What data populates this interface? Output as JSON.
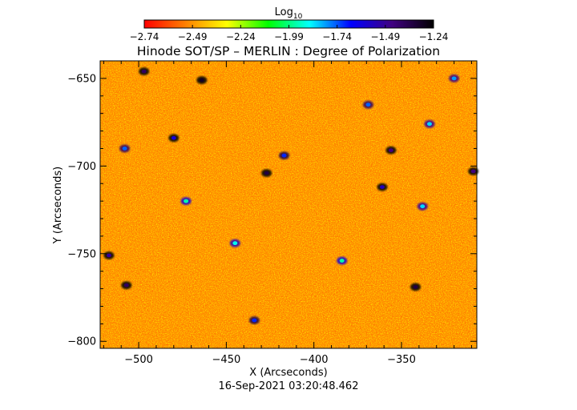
{
  "chart_data": {
    "type": "heatmap",
    "title": "Hinode SOT/SP – MERLIN : Degree of Polarization",
    "xlabel": "X (Arcseconds)",
    "ylabel": "Y (Arcseconds)",
    "timestamp": "16-Sep-2021 03:20:48.462",
    "xlim": [
      -522,
      -307
    ],
    "ylim": [
      -804,
      -640
    ],
    "x_ticks": [
      {
        "value": -500,
        "label": "−500"
      },
      {
        "value": -450,
        "label": "−450"
      },
      {
        "value": -400,
        "label": "−400"
      },
      {
        "value": -350,
        "label": "−350"
      }
    ],
    "y_ticks": [
      {
        "value": -650,
        "label": "−650"
      },
      {
        "value": -700,
        "label": "−700"
      },
      {
        "value": -750,
        "label": "−750"
      },
      {
        "value": -800,
        "label": "−800"
      }
    ],
    "colorbar": {
      "label_base": "Log",
      "label_sub": "10",
      "range": [
        -2.74,
        -1.24
      ],
      "ticks": [
        {
          "value": -2.74,
          "label": "−2.74"
        },
        {
          "value": -2.49,
          "label": "−2.49"
        },
        {
          "value": -2.24,
          "label": "−2.24"
        },
        {
          "value": -1.99,
          "label": "−1.99"
        },
        {
          "value": -1.74,
          "label": "−1.74"
        },
        {
          "value": -1.49,
          "label": "−1.49"
        },
        {
          "value": -1.24,
          "label": "−1.24"
        }
      ],
      "stops": [
        "#ff0000",
        "#ff8000",
        "#ffff00",
        "#00ff00",
        "#00ffff",
        "#0000ff",
        "#400080",
        "#000000"
      ]
    },
    "background_level": -2.55,
    "features": [
      {
        "x": -497,
        "y": -646,
        "value": -1.4
      },
      {
        "x": -464,
        "y": -651,
        "value": -1.3
      },
      {
        "x": -369,
        "y": -665,
        "value": -1.75
      },
      {
        "x": -334,
        "y": -676,
        "value": -1.85
      },
      {
        "x": -508,
        "y": -690,
        "value": -1.75
      },
      {
        "x": -480,
        "y": -684,
        "value": -1.6
      },
      {
        "x": -417,
        "y": -694,
        "value": -1.7
      },
      {
        "x": -356,
        "y": -691,
        "value": -1.45
      },
      {
        "x": -427,
        "y": -704,
        "value": -1.35
      },
      {
        "x": -309,
        "y": -703,
        "value": -1.45
      },
      {
        "x": -361,
        "y": -712,
        "value": -1.55
      },
      {
        "x": -338,
        "y": -723,
        "value": -1.85
      },
      {
        "x": -517,
        "y": -751,
        "value": -1.5
      },
      {
        "x": -507,
        "y": -768,
        "value": -1.4
      },
      {
        "x": -342,
        "y": -769,
        "value": -1.35
      },
      {
        "x": -434,
        "y": -788,
        "value": -1.7
      },
      {
        "x": -445,
        "y": -744,
        "value": -1.9
      },
      {
        "x": -384,
        "y": -754,
        "value": -1.95
      },
      {
        "x": -473,
        "y": -720,
        "value": -1.95
      },
      {
        "x": -320,
        "y": -650,
        "value": -1.8
      }
    ]
  }
}
